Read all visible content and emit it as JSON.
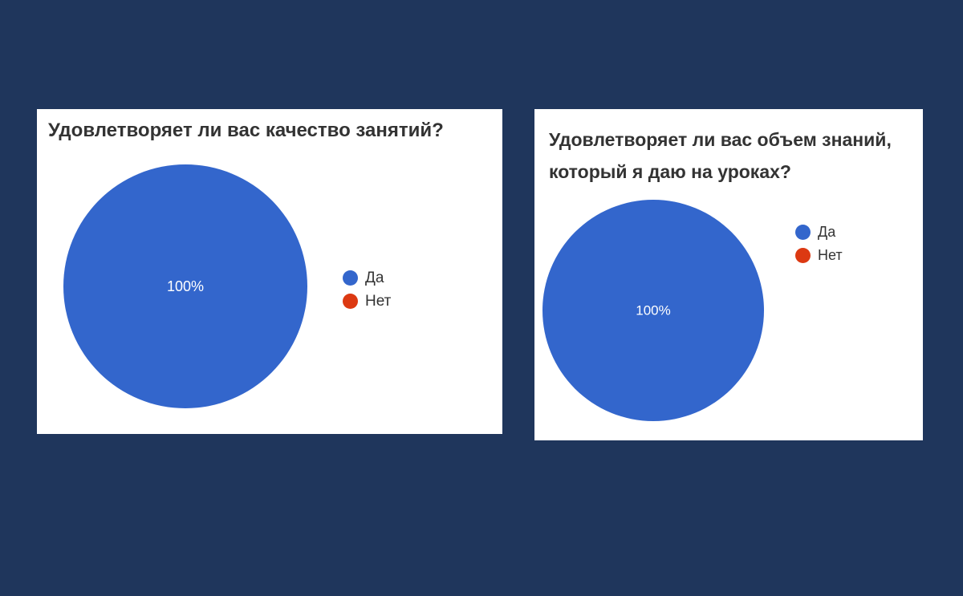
{
  "colors": {
    "background": "#1f365c",
    "card": "#ffffff",
    "yes": "#3366cc",
    "no": "#dc3912"
  },
  "chart_data": [
    {
      "type": "pie",
      "title": "Удовлетворяет ли вас качество занятий?",
      "categories": [
        "Да",
        "Нет"
      ],
      "values": [
        100,
        0
      ],
      "colors": [
        "#3366cc",
        "#dc3912"
      ],
      "data_labels": [
        "100%"
      ],
      "legend": "right"
    },
    {
      "type": "pie",
      "title_lines": [
        "Удовлетворяет ли вас объем знаний,",
        "который я даю на уроках?"
      ],
      "categories": [
        "Да",
        "Нет"
      ],
      "values": [
        100,
        0
      ],
      "colors": [
        "#3366cc",
        "#dc3912"
      ],
      "data_labels": [
        "100%"
      ],
      "legend": "right"
    }
  ]
}
